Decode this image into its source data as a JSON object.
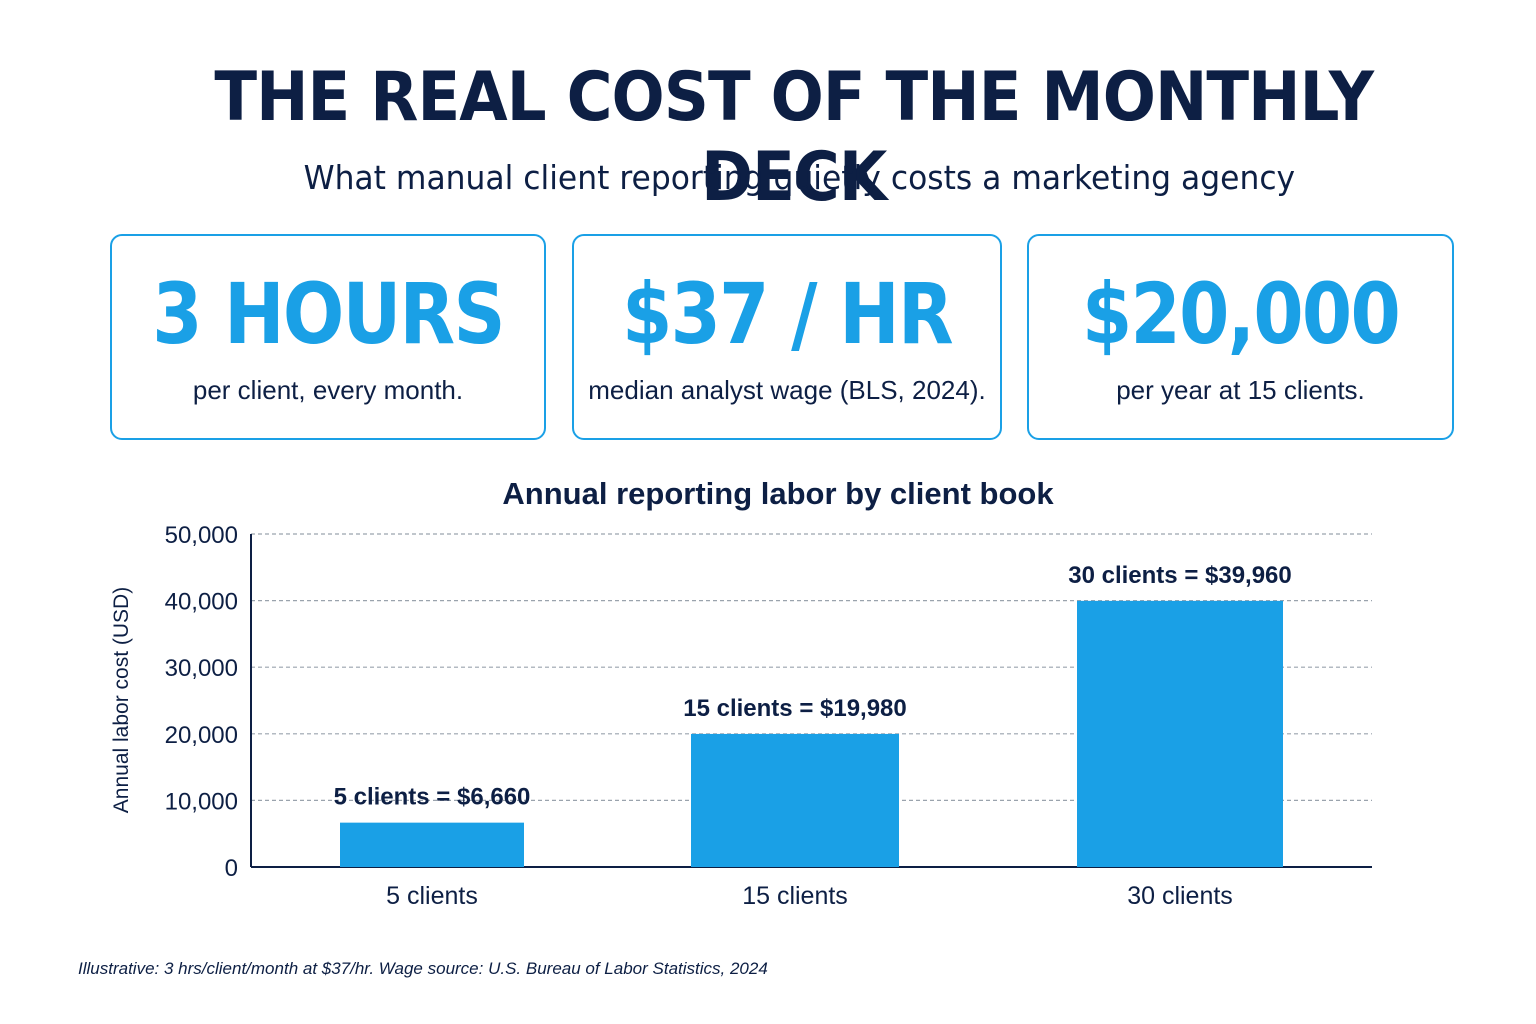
{
  "header": {
    "title": "THE REAL COST OF THE MONTHLY DECK",
    "subtitle": "What manual client reporting quietly costs a marketing agency"
  },
  "stats": [
    {
      "value": "3 HOURS",
      "caption": "per client, every month."
    },
    {
      "value": "$37 / HR",
      "caption": "median analyst wage (BLS, 2024)."
    },
    {
      "value": "$20,000",
      "caption": "per year at 15 clients."
    }
  ],
  "chart_data": {
    "type": "bar",
    "title": "Annual reporting labor by client book",
    "xlabel": "",
    "ylabel": "Annual labor cost (USD)",
    "categories": [
      "5 clients",
      "15 clients",
      "30 clients"
    ],
    "values": [
      6660,
      19980,
      39960
    ],
    "data_labels": [
      "5 clients = $6,660",
      "15 clients = $19,980",
      "30 clients = $39,960"
    ],
    "ylim": [
      0,
      50000
    ],
    "yticks": [
      0,
      10000,
      20000,
      30000,
      40000,
      50000
    ],
    "ytick_labels": [
      "0",
      "10,000",
      "20,000",
      "30,000",
      "40,000",
      "50,000"
    ],
    "grid": true,
    "bar_color": "#1aa0e6"
  },
  "footnote": "Illustrative: 3 hrs/client/month at $37/hr. Wage source: U.S. Bureau of Labor Statistics, 2024",
  "colors": {
    "navy": "#0d1f44",
    "accent": "#1aa0e6"
  }
}
